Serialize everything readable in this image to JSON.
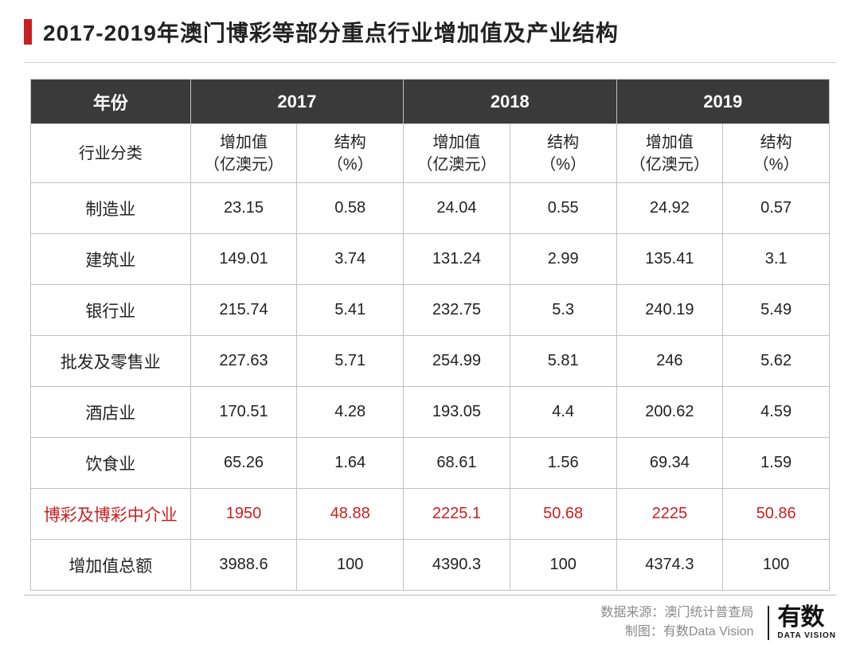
{
  "title": "2017-2019年澳门博彩等部分重点行业增加值及产业结构",
  "table": {
    "year_label": "年份",
    "years": [
      "2017",
      "2018",
      "2019"
    ],
    "category_label": "行业分类",
    "sub_headers": [
      "增加值\n（亿澳元）",
      "结构\n（%）"
    ],
    "highlight_row_index": 6,
    "highlight_color": "#c92020",
    "header_bg": "#3a3a3a",
    "header_color": "#ffffff",
    "border_color": "#c0c0c0",
    "text_color": "#222222",
    "rows": [
      {
        "label": "制造业",
        "values": [
          "23.15",
          "0.58",
          "24.04",
          "0.55",
          "24.92",
          "0.57"
        ]
      },
      {
        "label": "建筑业",
        "values": [
          "149.01",
          "3.74",
          "131.24",
          "2.99",
          "135.41",
          "3.1"
        ]
      },
      {
        "label": "银行业",
        "values": [
          "215.74",
          "5.41",
          "232.75",
          "5.3",
          "240.19",
          "5.49"
        ]
      },
      {
        "label": "批发及零售业",
        "values": [
          "227.63",
          "5.71",
          "254.99",
          "5.81",
          "246",
          "5.62"
        ]
      },
      {
        "label": "酒店业",
        "values": [
          "170.51",
          "4.28",
          "193.05",
          "4.4",
          "200.62",
          "4.59"
        ]
      },
      {
        "label": "饮食业",
        "values": [
          "65.26",
          "1.64",
          "68.61",
          "1.56",
          "69.34",
          "1.59"
        ]
      },
      {
        "label": "博彩及博彩中介业",
        "values": [
          "1950",
          "48.88",
          "2225.1",
          "50.68",
          "2225",
          "50.86"
        ]
      },
      {
        "label": "增加值总额",
        "values": [
          "3988.6",
          "100",
          "4390.3",
          "100",
          "4374.3",
          "100"
        ]
      }
    ]
  },
  "footer": {
    "source_label": "数据来源：",
    "source_value": "澳门统计普查局",
    "chart_label": "制图：",
    "chart_value": "有数Data Vision",
    "logo_cn": "有数",
    "logo_en": "DATA VISION"
  }
}
